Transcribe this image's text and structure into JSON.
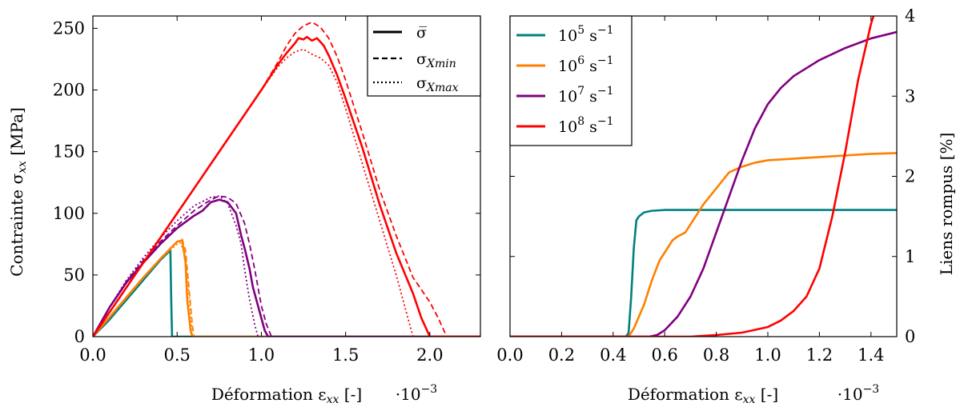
{
  "chart_data": [
    {
      "type": "line",
      "xlabel": "Déformation ε",
      "xlabel_sub": "xx",
      "xlabel_unit": " [-]",
      "x_multiplier_base": "·10",
      "x_multiplier_exp": "−3",
      "ylabel": "Contrainte σ",
      "ylabel_sub": "xx",
      "ylabel_unit": " [MPa]",
      "xlim": [
        0,
        2.3
      ],
      "ylim": [
        0,
        260
      ],
      "xticks": [
        "0.0",
        "0.5",
        "1.0",
        "1.5",
        "2.0"
      ],
      "xtick_values": [
        0,
        0.5,
        1.0,
        1.5,
        2.0
      ],
      "yticks": [
        "0",
        "50",
        "100",
        "150",
        "200",
        "250"
      ],
      "ytick_values": [
        0,
        50,
        100,
        150,
        200,
        250
      ],
      "grid": false,
      "legend_position": "top-right",
      "legend": [
        {
          "label": "σ̅",
          "sub": "",
          "style": "solid"
        },
        {
          "label": "σ",
          "sub": "Xmin",
          "style": "dashed"
        },
        {
          "label": "σ",
          "sub": "Xmax",
          "style": "dotted"
        }
      ],
      "series": [
        {
          "rate": "1e5",
          "color": "#008080",
          "style": "solid",
          "x": [
            0,
            0.1,
            0.2,
            0.3,
            0.4,
            0.46,
            0.465,
            0.47,
            2.3
          ],
          "y": [
            0,
            14,
            30,
            46,
            62,
            70,
            30,
            0,
            0
          ]
        },
        {
          "rate": "1e6",
          "color": "#ff8000",
          "style": "solid",
          "x": [
            0,
            0.1,
            0.2,
            0.3,
            0.4,
            0.5,
            0.53,
            0.55,
            0.56,
            0.58,
            0.59,
            0.6,
            2.3
          ],
          "y": [
            0,
            16,
            32,
            48,
            63,
            77,
            78,
            60,
            30,
            5,
            0,
            0,
            0
          ]
        },
        {
          "rate": "1e6",
          "color": "#ff8000",
          "style": "dashed",
          "x": [
            0,
            0.1,
            0.2,
            0.3,
            0.4,
            0.5,
            0.53,
            0.55,
            0.57,
            0.59,
            0.6
          ],
          "y": [
            0,
            16,
            32,
            48,
            63,
            77,
            79,
            70,
            40,
            10,
            0
          ]
        },
        {
          "rate": "1e6",
          "color": "#ff8000",
          "style": "dotted",
          "x": [
            0,
            0.1,
            0.2,
            0.3,
            0.4,
            0.5,
            0.52,
            0.55,
            0.57,
            0.59
          ],
          "y": [
            0,
            16,
            32,
            48,
            63,
            75,
            76,
            65,
            35,
            0
          ]
        },
        {
          "rate": "1e7",
          "color": "#800080",
          "style": "solid",
          "x": [
            0,
            0.1,
            0.2,
            0.3,
            0.4,
            0.5,
            0.6,
            0.65,
            0.7,
            0.75,
            0.8,
            0.85,
            0.88,
            0.9,
            0.93,
            0.95,
            0.97,
            1.0,
            1.02,
            1.04,
            1.05,
            2.3
          ],
          "y": [
            0,
            24,
            44,
            60,
            75,
            88,
            98,
            102,
            109,
            111,
            109,
            100,
            82,
            72,
            55,
            40,
            30,
            15,
            5,
            0,
            0,
            0
          ]
        },
        {
          "rate": "1e7",
          "color": "#800080",
          "style": "dashed",
          "x": [
            0,
            0.1,
            0.2,
            0.3,
            0.4,
            0.5,
            0.6,
            0.7,
            0.75,
            0.8,
            0.85,
            0.9,
            0.93,
            0.96,
            1.0,
            1.03,
            1.06
          ],
          "y": [
            0,
            24,
            45,
            62,
            77,
            90,
            102,
            111,
            114,
            113,
            108,
            92,
            75,
            55,
            25,
            10,
            0
          ]
        },
        {
          "rate": "1e7",
          "color": "#800080",
          "style": "dotted",
          "x": [
            0,
            0.1,
            0.2,
            0.3,
            0.4,
            0.5,
            0.6,
            0.7,
            0.75,
            0.8,
            0.85,
            0.88,
            0.9,
            0.93,
            0.96,
            0.98
          ],
          "y": [
            0,
            24,
            46,
            64,
            80,
            94,
            106,
            113,
            114,
            108,
            90,
            75,
            55,
            30,
            10,
            0
          ]
        },
        {
          "rate": "1e8",
          "color": "#ff0000",
          "style": "solid",
          "x": [
            0,
            0.25,
            0.5,
            0.75,
            1.0,
            1.1,
            1.15,
            1.2,
            1.22,
            1.25,
            1.27,
            1.3,
            1.33,
            1.37,
            1.4,
            1.45,
            1.5,
            1.6,
            1.7,
            1.8,
            1.9,
            1.95,
            2.0,
            2.3
          ],
          "y": [
            0,
            50,
            100,
            150,
            200,
            221,
            230,
            238,
            242,
            241,
            243,
            240,
            242,
            236,
            228,
            212,
            193,
            153,
            108,
            68,
            35,
            15,
            0,
            0
          ]
        },
        {
          "rate": "1e8",
          "color": "#ff0000",
          "style": "dashed",
          "x": [
            0,
            0.25,
            0.5,
            0.75,
            1.0,
            1.1,
            1.15,
            1.2,
            1.25,
            1.3,
            1.35,
            1.4,
            1.45,
            1.5,
            1.6,
            1.7,
            1.8,
            1.9,
            2.0,
            2.05,
            2.1
          ],
          "y": [
            0,
            50,
            100,
            150,
            200,
            223,
            236,
            246,
            252,
            255,
            251,
            242,
            227,
            208,
            165,
            120,
            82,
            48,
            28,
            15,
            0
          ]
        },
        {
          "rate": "1e8",
          "color": "#ff0000",
          "style": "dotted",
          "x": [
            0,
            0.25,
            0.5,
            0.75,
            1.0,
            1.1,
            1.15,
            1.2,
            1.25,
            1.3,
            1.35,
            1.4,
            1.45,
            1.5,
            1.6,
            1.7,
            1.8,
            1.85,
            1.9
          ],
          "y": [
            0,
            50,
            100,
            150,
            200,
            219,
            226,
            231,
            233,
            229,
            226,
            220,
            206,
            185,
            140,
            95,
            50,
            25,
            0
          ]
        }
      ]
    },
    {
      "type": "line",
      "xlabel": "Déformation ε",
      "xlabel_sub": "xx",
      "xlabel_unit": " [-]",
      "x_multiplier_base": "·10",
      "x_multiplier_exp": "−3",
      "ylabel": "Liens rompus [%]",
      "y_axis_side": "right",
      "xlim": [
        0,
        1.5
      ],
      "ylim": [
        0,
        4
      ],
      "xticks": [
        "0.0",
        "0.2",
        "0.4",
        "0.6",
        "0.8",
        "1.0",
        "1.2",
        "1.4"
      ],
      "xtick_values": [
        0,
        0.2,
        0.4,
        0.6,
        0.8,
        1.0,
        1.2,
        1.4
      ],
      "yticks": [
        "0",
        "1",
        "2",
        "3",
        "4"
      ],
      "ytick_values": [
        0,
        1,
        2,
        3,
        4
      ],
      "grid": false,
      "legend_position": "top-left",
      "legend": [
        {
          "base": "10",
          "exp": "5",
          "unit": " s",
          "unit_exp": "−1",
          "color": "#008080"
        },
        {
          "base": "10",
          "exp": "6",
          "unit": " s",
          "unit_exp": "−1",
          "color": "#ff8000"
        },
        {
          "base": "10",
          "exp": "7",
          "unit": " s",
          "unit_exp": "−1",
          "color": "#800080"
        },
        {
          "base": "10",
          "exp": "8",
          "unit": " s",
          "unit_exp": "−1",
          "color": "#ff0000"
        }
      ],
      "series": [
        {
          "rate": "1e5",
          "color": "#008080",
          "x": [
            0,
            0.45,
            0.46,
            0.47,
            0.48,
            0.49,
            0.5,
            0.52,
            0.55,
            0.6,
            0.7,
            1.5
          ],
          "y": [
            0,
            0,
            0.05,
            0.5,
            1.1,
            1.45,
            1.5,
            1.55,
            1.57,
            1.58,
            1.58,
            1.58
          ]
        },
        {
          "rate": "1e6",
          "color": "#ff8000",
          "x": [
            0,
            0.46,
            0.48,
            0.5,
            0.52,
            0.55,
            0.58,
            0.6,
            0.63,
            0.65,
            0.68,
            0.7,
            0.75,
            0.8,
            0.85,
            0.9,
            0.95,
            1.0,
            1.1,
            1.2,
            1.3,
            1.4,
            1.5
          ],
          "y": [
            0,
            0,
            0.1,
            0.25,
            0.4,
            0.7,
            0.95,
            1.05,
            1.2,
            1.25,
            1.3,
            1.4,
            1.65,
            1.85,
            2.05,
            2.12,
            2.17,
            2.2,
            2.22,
            2.24,
            2.26,
            2.28,
            2.29
          ]
        },
        {
          "rate": "1e7",
          "color": "#800080",
          "x": [
            0,
            0.54,
            0.57,
            0.6,
            0.65,
            0.7,
            0.75,
            0.8,
            0.85,
            0.9,
            0.95,
            1.0,
            1.05,
            1.1,
            1.2,
            1.3,
            1.4,
            1.5
          ],
          "y": [
            0,
            0,
            0.02,
            0.08,
            0.25,
            0.5,
            0.85,
            1.3,
            1.75,
            2.2,
            2.6,
            2.9,
            3.1,
            3.25,
            3.45,
            3.6,
            3.72,
            3.8
          ]
        },
        {
          "rate": "1e8",
          "color": "#ff0000",
          "x": [
            0,
            0.7,
            0.8,
            0.9,
            1.0,
            1.05,
            1.1,
            1.15,
            1.2,
            1.25,
            1.3,
            1.35,
            1.4,
            1.43
          ],
          "y": [
            0,
            0,
            0.02,
            0.05,
            0.12,
            0.2,
            0.32,
            0.5,
            0.85,
            1.5,
            2.3,
            3.2,
            3.9,
            4.2
          ]
        }
      ]
    }
  ]
}
